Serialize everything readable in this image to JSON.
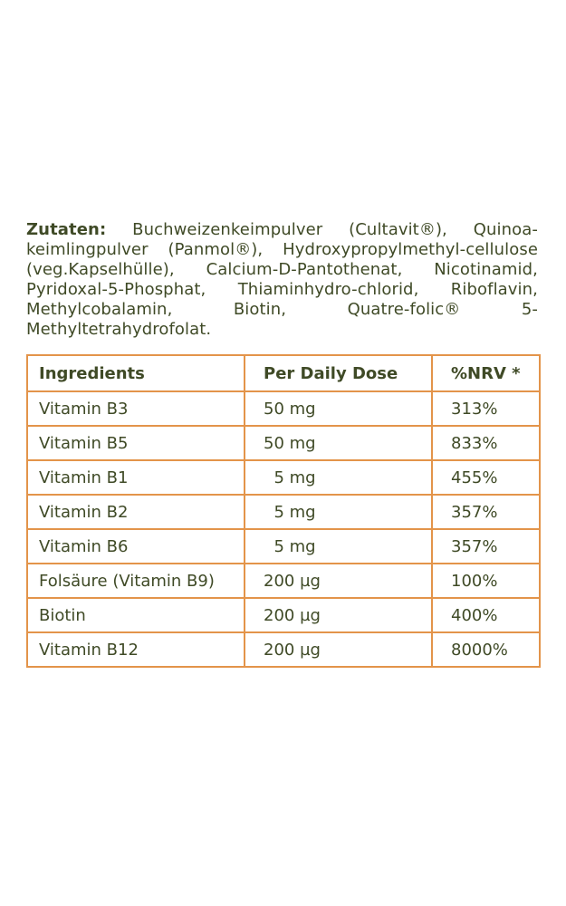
{
  "ingredients": {
    "label": "Zutaten:",
    "text": "Buchweizenkeimpulver (Cultavit®), Quinoa-keimlingpulver (Panmol®), Hydroxypropylmethyl-cellulose (veg.Kapselhülle), Calcium-D-Pantothenat, Nicotinamid, Pyridoxal-5-Phosphat, Thiaminhydro-chlorid, Riboflavin, Methylcobalamin, Biotin, Quatre-folic® 5-Methyltetrahydrofolat."
  },
  "table": {
    "headers": {
      "ingredient": "Ingredients",
      "dose": "Per Daily Dose",
      "nrv": "%NRV *"
    },
    "rows": [
      {
        "ingredient": "Vitamin B3",
        "dose": "50 mg",
        "nrv": "313%"
      },
      {
        "ingredient": "Vitamin B5",
        "dose": "50 mg",
        "nrv": "833%"
      },
      {
        "ingredient": "Vitamin B1",
        "dose": "  5 mg",
        "nrv": "455%"
      },
      {
        "ingredient": "Vitamin B2",
        "dose": "  5 mg",
        "nrv": "357%"
      },
      {
        "ingredient": "Vitamin B6",
        "dose": "  5 mg",
        "nrv": "357%"
      },
      {
        "ingredient": "Folsäure (Vitamin B9)",
        "dose": "200 µg",
        "nrv": "100%"
      },
      {
        "ingredient": "Biotin",
        "dose": "200 µg",
        "nrv": "400%"
      },
      {
        "ingredient": "Vitamin B12",
        "dose": "200 µg",
        "nrv": "8000%"
      }
    ]
  },
  "colors": {
    "text": "#3f4a26",
    "border": "#e3944a",
    "background": "#ffffff"
  }
}
